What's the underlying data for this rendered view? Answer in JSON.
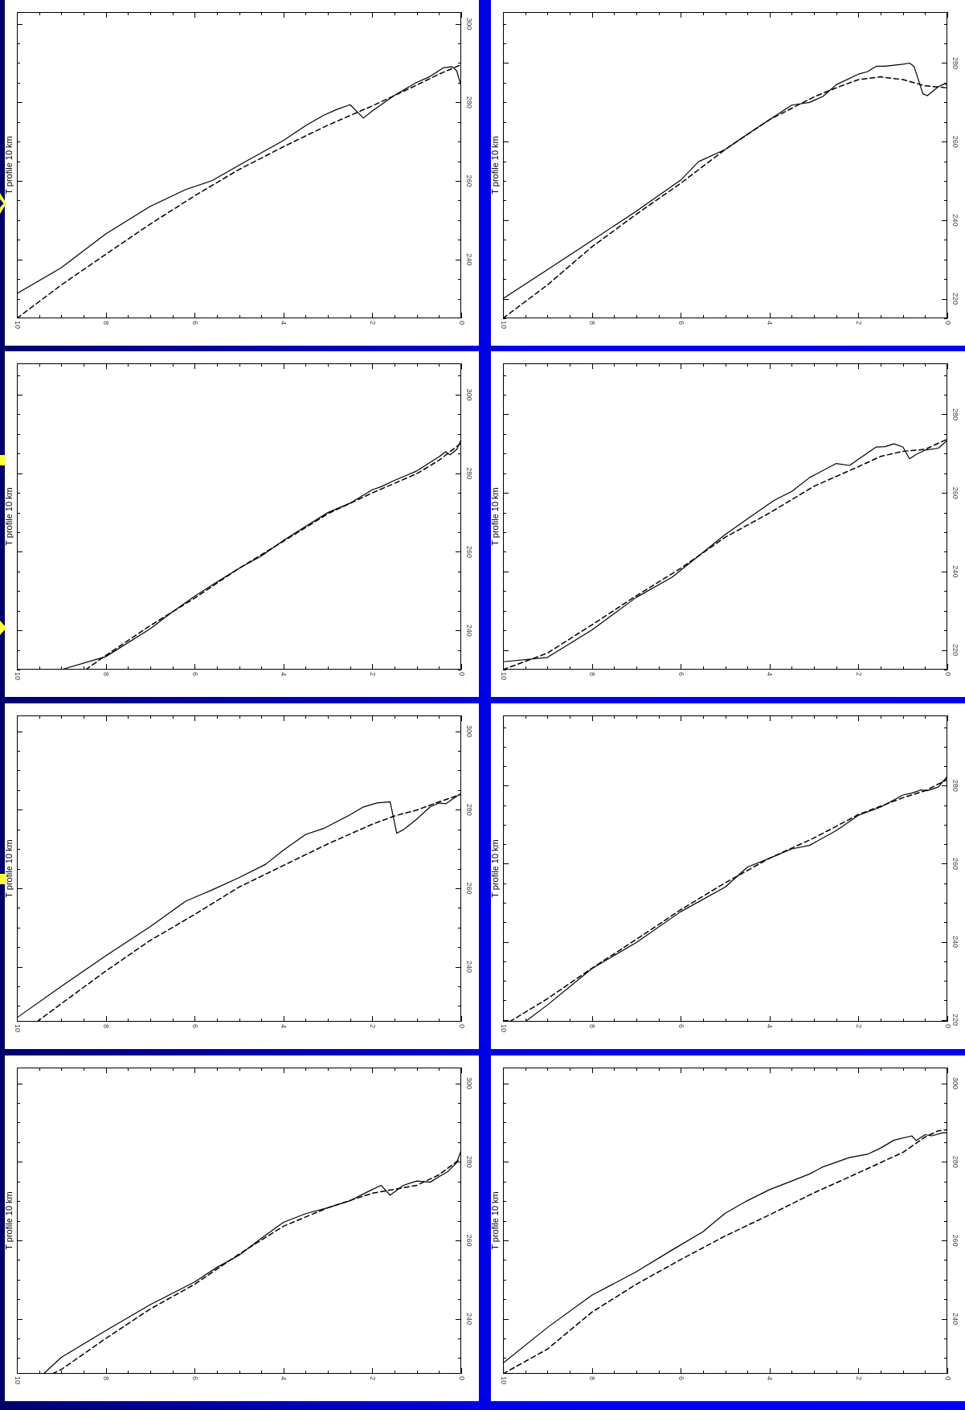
{
  "chart_data": [
    {
      "type": "line",
      "ylabel": "T profile 10 km",
      "marker": "none",
      "xlim": [
        10,
        0
      ],
      "xticks": [
        10,
        {
          "value": 9.5,
          "label": null
        },
        {
          "value": 9,
          "label": null
        },
        {
          "value": 8.5,
          "label": null
        },
        8,
        {
          "value": 7.5,
          "label": null
        },
        {
          "value": 7,
          "label": null
        },
        {
          "value": 6.5,
          "label": null
        },
        6,
        {
          "value": 5.5,
          "label": null
        },
        {
          "value": 5,
          "label": null
        },
        {
          "value": 4.5,
          "label": null
        },
        4,
        {
          "value": 3.5,
          "label": null
        },
        {
          "value": 3,
          "label": null
        },
        {
          "value": 2.5,
          "label": null
        },
        2,
        {
          "value": 1.5,
          "label": null
        },
        {
          "value": 1,
          "label": null
        },
        {
          "value": 0.5,
          "label": null
        },
        0
      ],
      "ylim": [
        225,
        303
      ],
      "yticks": [
        {
          "value": 230,
          "label": null
        },
        {
          "value": 235,
          "label": null
        },
        240,
        {
          "value": 245,
          "label": null
        },
        {
          "value": 250,
          "label": null
        },
        {
          "value": 255,
          "label": null
        },
        260,
        {
          "value": 265,
          "label": null
        },
        {
          "value": 270,
          "label": null
        },
        {
          "value": 275,
          "label": null
        },
        280,
        {
          "value": 285,
          "label": null
        },
        {
          "value": 290,
          "label": null
        },
        {
          "value": 295,
          "label": null
        },
        300
      ],
      "series": [
        {
          "color": "#000000",
          "line_style": "solid",
          "x": [
            10,
            9,
            8,
            7,
            6.2,
            5.6,
            5,
            4,
            3.5,
            3.1,
            2.8,
            2.5,
            2.2,
            2,
            1.5,
            1,
            0.7,
            0.4,
            0.2,
            0.1,
            0
          ],
          "values": [
            231.3,
            237.9,
            246.5,
            253.5,
            257.8,
            260.1,
            264,
            270.3,
            274.1,
            276.7,
            278.2,
            279.4,
            276,
            277.8,
            281.8,
            285.1,
            286.6,
            288.8,
            289.1,
            288,
            284.1
          ]
        },
        {
          "color": "#000000",
          "line_style": "dashed",
          "x": [
            10,
            9,
            8,
            7,
            6,
            5,
            4,
            3,
            2,
            1,
            0.5,
            0
          ],
          "values": [
            225,
            233.5,
            241.3,
            249,
            256.2,
            262.9,
            268.7,
            274.2,
            279.1,
            284.4,
            287.2,
            289.6
          ]
        }
      ]
    },
    {
      "type": "line",
      "ylabel": "T profile 10 km",
      "marker": "none",
      "xlim": [
        10,
        0
      ],
      "xticks": [
        10,
        {
          "value": 9.5,
          "label": null
        },
        {
          "value": 9,
          "label": null
        },
        {
          "value": 8.5,
          "label": null
        },
        8,
        {
          "value": 7.5,
          "label": null
        },
        {
          "value": 7,
          "label": null
        },
        {
          "value": 6.5,
          "label": null
        },
        6,
        {
          "value": 5.5,
          "label": null
        },
        {
          "value": 5,
          "label": null
        },
        {
          "value": 4.5,
          "label": null
        },
        4,
        {
          "value": 3.5,
          "label": null
        },
        {
          "value": 3,
          "label": null
        },
        {
          "value": 2.5,
          "label": null
        },
        2,
        {
          "value": 1.5,
          "label": null
        },
        {
          "value": 1,
          "label": null
        },
        {
          "value": 0.5,
          "label": null
        },
        0
      ],
      "ylim": [
        215,
        293
      ],
      "yticks": [
        {
          "value": 215,
          "label": null
        },
        220,
        {
          "value": 225,
          "label": null
        },
        {
          "value": 230,
          "label": null
        },
        {
          "value": 235,
          "label": null
        },
        240,
        {
          "value": 245,
          "label": null
        },
        {
          "value": 250,
          "label": null
        },
        {
          "value": 255,
          "label": null
        },
        260,
        {
          "value": 265,
          "label": null
        },
        {
          "value": 270,
          "label": null
        },
        {
          "value": 275,
          "label": null
        },
        280,
        {
          "value": 285,
          "label": null
        },
        {
          "value": 290,
          "label": null
        }
      ],
      "series": [
        {
          "color": "#000000",
          "line_style": "solid",
          "x": [
            10,
            9,
            8,
            7,
            6,
            5.6,
            5,
            4.5,
            4,
            3.5,
            3.1,
            2.8,
            2.5,
            2,
            1.8,
            1.6,
            1.4,
            1,
            0.85,
            0.75,
            0.55,
            0.45,
            0.2,
            0.05,
            0
          ],
          "values": [
            220,
            227.4,
            234.8,
            242.3,
            250.2,
            254.9,
            258,
            261.9,
            265.6,
            269.3,
            270,
            271.5,
            274.5,
            277.2,
            277.8,
            279.2,
            279.2,
            279.7,
            280,
            279.2,
            272.2,
            271.7,
            274,
            274.8,
            274.2
          ]
        },
        {
          "color": "#000000",
          "line_style": "dashed",
          "x": [
            10,
            9,
            8,
            7,
            6,
            5,
            4,
            3,
            2.5,
            2,
            1.5,
            1,
            0.5,
            0
          ],
          "values": [
            215,
            223.5,
            233.2,
            241.5,
            249.4,
            258,
            265.6,
            271.4,
            273.7,
            275.8,
            276.5,
            275.8,
            274.2,
            273.7
          ]
        }
      ]
    },
    {
      "type": "line",
      "ylabel": "T profile 10 km",
      "marker": "none",
      "xlim": [
        10,
        0
      ],
      "xticks": [
        10,
        {
          "value": 9.5,
          "label": null
        },
        {
          "value": 9,
          "label": null
        },
        {
          "value": 8.5,
          "label": null
        },
        8,
        {
          "value": 7.5,
          "label": null
        },
        {
          "value": 7,
          "label": null
        },
        {
          "value": 6.5,
          "label": null
        },
        6,
        {
          "value": 5.5,
          "label": null
        },
        {
          "value": 5,
          "label": null
        },
        {
          "value": 4.5,
          "label": null
        },
        4,
        {
          "value": 3.5,
          "label": null
        },
        {
          "value": 3,
          "label": null
        },
        {
          "value": 2.5,
          "label": null
        },
        2,
        {
          "value": 1.5,
          "label": null
        },
        {
          "value": 1,
          "label": null
        },
        {
          "value": 0.5,
          "label": null
        },
        0
      ],
      "ylim": [
        230,
        308
      ],
      "yticks": [
        {
          "value": 230,
          "label": null
        },
        {
          "value": 235,
          "label": null
        },
        240,
        {
          "value": 245,
          "label": null
        },
        {
          "value": 250,
          "label": null
        },
        {
          "value": 255,
          "label": null
        },
        260,
        {
          "value": 265,
          "label": null
        },
        {
          "value": 270,
          "label": null
        },
        {
          "value": 275,
          "label": null
        },
        280,
        {
          "value": 285,
          "label": null
        },
        {
          "value": 290,
          "label": null
        },
        {
          "value": 295,
          "label": null
        },
        300,
        {
          "value": 305,
          "label": null
        }
      ],
      "series": [
        {
          "color": "#000000",
          "line_style": "solid",
          "x": [
            9,
            8,
            7,
            6.5,
            6,
            5.5,
            5,
            4.5,
            4,
            3.5,
            3,
            2.5,
            2,
            1.8,
            1.5,
            1,
            0.5,
            0.35,
            0.25,
            0.1,
            0
          ],
          "values": [
            230,
            233.3,
            240.4,
            244.7,
            248.7,
            252.3,
            255.8,
            258.9,
            262.9,
            266.5,
            270,
            272.4,
            275.8,
            276.6,
            278.2,
            280.6,
            284.2,
            285.5,
            284.7,
            286.1,
            288.6
          ]
        },
        {
          "color": "#000000",
          "line_style": "dashed",
          "x": [
            8.45,
            8,
            7,
            6,
            5,
            4,
            3,
            2,
            1,
            0.5,
            0
          ],
          "values": [
            230,
            233.6,
            241.2,
            248.2,
            255.8,
            262.7,
            269.7,
            275,
            279.9,
            283.3,
            287.7
          ]
        }
      ]
    },
    {
      "type": "line",
      "ylabel": "T profile 10 km",
      "marker": "none",
      "xlim": [
        10,
        0
      ],
      "xticks": [
        10,
        {
          "value": 9.5,
          "label": null
        },
        {
          "value": 9,
          "label": null
        },
        {
          "value": 8.5,
          "label": null
        },
        8,
        {
          "value": 7.5,
          "label": null
        },
        {
          "value": 7,
          "label": null
        },
        {
          "value": 6.5,
          "label": null
        },
        6,
        {
          "value": 5.5,
          "label": null
        },
        {
          "value": 5,
          "label": null
        },
        {
          "value": 4.5,
          "label": null
        },
        4,
        {
          "value": 3.5,
          "label": null
        },
        {
          "value": 3,
          "label": null
        },
        {
          "value": 2.5,
          "label": null
        },
        2,
        {
          "value": 1.5,
          "label": null
        },
        {
          "value": 1,
          "label": null
        },
        {
          "value": 0.5,
          "label": null
        },
        0
      ],
      "ylim": [
        215,
        293
      ],
      "yticks": [
        {
          "value": 215,
          "label": null
        },
        220,
        {
          "value": 225,
          "label": null
        },
        {
          "value": 230,
          "label": null
        },
        {
          "value": 235,
          "label": null
        },
        240,
        {
          "value": 245,
          "label": null
        },
        {
          "value": 250,
          "label": null
        },
        {
          "value": 255,
          "label": null
        },
        260,
        {
          "value": 265,
          "label": null
        },
        {
          "value": 270,
          "label": null
        },
        {
          "value": 275,
          "label": null
        },
        280,
        {
          "value": 285,
          "label": null
        },
        {
          "value": 290,
          "label": null
        }
      ],
      "series": [
        {
          "color": "#000000",
          "line_style": "solid",
          "x": [
            10,
            9,
            8,
            7,
            6.2,
            5,
            4.5,
            3.9,
            3.5,
            3.1,
            2.5,
            2.2,
            2,
            1.6,
            1.4,
            1.2,
            1,
            0.85,
            0.7,
            0.5,
            0.2,
            0
          ],
          "values": [
            217,
            218.1,
            225.1,
            233.4,
            238.5,
            249.4,
            253.4,
            258.1,
            260.4,
            263.9,
            267.5,
            267,
            268.6,
            271.7,
            271.8,
            272.5,
            271.7,
            268.7,
            269.8,
            270.9,
            271.4,
            273.4
          ]
        },
        {
          "color": "#000000",
          "line_style": "dashed",
          "x": [
            10,
            9,
            8,
            7,
            6,
            5,
            4,
            3,
            2,
            1.5,
            1,
            0.5,
            0
          ],
          "values": [
            215,
            219.2,
            226.4,
            233.8,
            240.8,
            248.7,
            254.9,
            261.7,
            266.7,
            269.3,
            270.6,
            271.1,
            273.7
          ]
        }
      ]
    },
    {
      "type": "line",
      "ylabel": "T profile 10 km",
      "marker": "none",
      "xlim": [
        10,
        0
      ],
      "xticks": [
        10,
        {
          "value": 9.5,
          "label": null
        },
        {
          "value": 9,
          "label": null
        },
        {
          "value": 8.5,
          "label": null
        },
        8,
        {
          "value": 7.5,
          "label": null
        },
        {
          "value": 7,
          "label": null
        },
        {
          "value": 6.5,
          "label": null
        },
        6,
        {
          "value": 5.5,
          "label": null
        },
        {
          "value": 5,
          "label": null
        },
        {
          "value": 4.5,
          "label": null
        },
        4,
        {
          "value": 3.5,
          "label": null
        },
        {
          "value": 3,
          "label": null
        },
        {
          "value": 2.5,
          "label": null
        },
        2,
        {
          "value": 1.5,
          "label": null
        },
        {
          "value": 1,
          "label": null
        },
        {
          "value": 0.5,
          "label": null
        },
        0
      ],
      "ylim": [
        226,
        304
      ],
      "yticks": [
        {
          "value": 230,
          "label": null
        },
        {
          "value": 235,
          "label": null
        },
        240,
        {
          "value": 245,
          "label": null
        },
        {
          "value": 250,
          "label": null
        },
        {
          "value": 255,
          "label": null
        },
        260,
        {
          "value": 265,
          "label": null
        },
        {
          "value": 270,
          "label": null
        },
        {
          "value": 275,
          "label": null
        },
        280,
        {
          "value": 285,
          "label": null
        },
        {
          "value": 290,
          "label": null
        },
        {
          "value": 295,
          "label": null
        },
        300
      ],
      "series": [
        {
          "color": "#000000",
          "line_style": "solid",
          "x": [
            10,
            9,
            8,
            7,
            6.2,
            5.6,
            5,
            4.4,
            4,
            3.5,
            3.1,
            2.5,
            2.2,
            1.9,
            1.6,
            1.45,
            1.3,
            1,
            0.7,
            0.5,
            0.35,
            0.1,
            0
          ],
          "values": [
            227,
            235,
            242.8,
            250.2,
            256.7,
            259.6,
            262.7,
            266.1,
            269.7,
            273.7,
            275.2,
            278.7,
            280.7,
            281.7,
            282,
            274,
            274.9,
            277.6,
            280.7,
            281.7,
            281.5,
            283.4,
            284.2
          ]
        },
        {
          "color": "#000000",
          "line_style": "dashed",
          "x": [
            9.55,
            9,
            8,
            7,
            6,
            5,
            4,
            3,
            2,
            1.5,
            1,
            0.5,
            0
          ],
          "values": [
            226,
            230.6,
            238.9,
            246.7,
            253.3,
            260.3,
            265.8,
            271.3,
            276.3,
            278.4,
            279.9,
            282,
            283.9
          ]
        }
      ]
    },
    {
      "type": "line",
      "ylabel": "T profile 10 km",
      "marker": "none",
      "xlim": [
        10,
        0
      ],
      "xticks": [
        10,
        {
          "value": 9.5,
          "label": null
        },
        {
          "value": 9,
          "label": null
        },
        {
          "value": 8.5,
          "label": null
        },
        8,
        {
          "value": 7.5,
          "label": null
        },
        {
          "value": 7,
          "label": null
        },
        {
          "value": 6.5,
          "label": null
        },
        6,
        {
          "value": 5.5,
          "label": null
        },
        {
          "value": 5,
          "label": null
        },
        {
          "value": 4.5,
          "label": null
        },
        4,
        {
          "value": 3.5,
          "label": null
        },
        {
          "value": 3,
          "label": null
        },
        {
          "value": 2.5,
          "label": null
        },
        2,
        {
          "value": 1.5,
          "label": null
        },
        {
          "value": 1,
          "label": null
        },
        {
          "value": 0.5,
          "label": null
        },
        0
      ],
      "ylim": [
        219.5,
        298
      ],
      "yticks": [
        220,
        {
          "value": 225,
          "label": null
        },
        {
          "value": 230,
          "label": null
        },
        {
          "value": 235,
          "label": null
        },
        240,
        {
          "value": 245,
          "label": null
        },
        {
          "value": 250,
          "label": null
        },
        {
          "value": 255,
          "label": null
        },
        260,
        {
          "value": 265,
          "label": null
        },
        {
          "value": 270,
          "label": null
        },
        {
          "value": 275,
          "label": null
        },
        280,
        {
          "value": 285,
          "label": null
        },
        {
          "value": 290,
          "label": null
        },
        {
          "value": 295,
          "label": null
        }
      ],
      "series": [
        {
          "color": "#000000",
          "line_style": "solid",
          "x": [
            9.5,
            9,
            8,
            7,
            6,
            5,
            4.5,
            4,
            3.5,
            3.1,
            2.5,
            2,
            1.5,
            1,
            0.8,
            0.6,
            0.45,
            0.2,
            0
          ],
          "values": [
            219.5,
            223.8,
            233.1,
            239.8,
            247.7,
            254,
            259.1,
            261.4,
            263.8,
            264.7,
            268.5,
            272.4,
            274.5,
            277.6,
            278.1,
            278.9,
            278.7,
            279.7,
            282.4
          ]
        },
        {
          "color": "#000000",
          "line_style": "dashed",
          "x": [
            9.85,
            9,
            8,
            7,
            6,
            5,
            4,
            3,
            2,
            1,
            0.5,
            0
          ],
          "values": [
            219.5,
            225.4,
            233.2,
            240.6,
            248.2,
            255.1,
            261.4,
            266.6,
            272.6,
            276.9,
            278.7,
            281.6
          ]
        }
      ]
    },
    {
      "type": "line",
      "ylabel": "T profile 10 km",
      "marker": "none",
      "xlim": [
        10,
        0
      ],
      "xticks": [
        10,
        {
          "value": 9.5,
          "label": null
        },
        {
          "value": 9,
          "label": null
        },
        {
          "value": 8.5,
          "label": null
        },
        8,
        {
          "value": 7.5,
          "label": null
        },
        {
          "value": 7,
          "label": null
        },
        {
          "value": 6.5,
          "label": null
        },
        6,
        {
          "value": 5.5,
          "label": null
        },
        {
          "value": 5,
          "label": null
        },
        {
          "value": 4.5,
          "label": null
        },
        4,
        {
          "value": 3.5,
          "label": null
        },
        {
          "value": 3,
          "label": null
        },
        {
          "value": 2.5,
          "label": null
        },
        2,
        {
          "value": 1.5,
          "label": null
        },
        {
          "value": 1,
          "label": null
        },
        {
          "value": 0.5,
          "label": null
        },
        0
      ],
      "ylim": [
        226,
        304
      ],
      "yticks": [
        {
          "value": 230,
          "label": null
        },
        {
          "value": 235,
          "label": null
        },
        240,
        {
          "value": 245,
          "label": null
        },
        {
          "value": 250,
          "label": null
        },
        {
          "value": 255,
          "label": null
        },
        260,
        {
          "value": 265,
          "label": null
        },
        {
          "value": 270,
          "label": null
        },
        {
          "value": 275,
          "label": null
        },
        280,
        {
          "value": 285,
          "label": null
        },
        {
          "value": 290,
          "label": null
        },
        {
          "value": 295,
          "label": null
        },
        300
      ],
      "series": [
        {
          "color": "#000000",
          "line_style": "solid",
          "x": [
            9.4,
            9,
            8,
            7,
            6,
            5.5,
            5,
            4.5,
            4,
            3.5,
            3,
            2.5,
            2.1,
            1.8,
            1.6,
            1.3,
            1,
            0.7,
            0.5,
            0.3,
            0.1,
            0
          ],
          "values": [
            226,
            230.2,
            237,
            243.6,
            249.4,
            253.1,
            256.2,
            260.5,
            264.6,
            266.8,
            268.3,
            270.1,
            272.4,
            274,
            271.5,
            274,
            275.1,
            274.8,
            276.2,
            277.5,
            279.8,
            283
          ]
        },
        {
          "color": "#000000",
          "line_style": "dashed",
          "x": [
            9.2,
            9,
            8,
            7,
            6,
            5,
            4,
            3,
            2,
            1,
            0.5,
            0
          ],
          "values": [
            226,
            227.1,
            235,
            242.5,
            248.8,
            256.5,
            263.6,
            268.3,
            272,
            274,
            276.7,
            280.9
          ]
        }
      ]
    },
    {
      "type": "line",
      "ylabel": "T profile 10 km",
      "marker": "none",
      "xlim": [
        10,
        0
      ],
      "xticks": [
        10,
        {
          "value": 9.5,
          "label": null
        },
        {
          "value": 9,
          "label": null
        },
        {
          "value": 8.5,
          "label": null
        },
        8,
        {
          "value": 7.5,
          "label": null
        },
        {
          "value": 7,
          "label": null
        },
        {
          "value": 6.5,
          "label": null
        },
        6,
        {
          "value": 5.5,
          "label": null
        },
        {
          "value": 5,
          "label": null
        },
        {
          "value": 4.5,
          "label": null
        },
        4,
        {
          "value": 3.5,
          "label": null
        },
        {
          "value": 3,
          "label": null
        },
        {
          "value": 2.5,
          "label": null
        },
        2,
        {
          "value": 1.5,
          "label": null
        },
        {
          "value": 1,
          "label": null
        },
        {
          "value": 0.5,
          "label": null
        },
        0
      ],
      "ylim": [
        226,
        304
      ],
      "yticks": [
        {
          "value": 230,
          "label": null
        },
        {
          "value": 235,
          "label": null
        },
        240,
        {
          "value": 245,
          "label": null
        },
        {
          "value": 250,
          "label": null
        },
        {
          "value": 255,
          "label": null
        },
        260,
        {
          "value": 265,
          "label": null
        },
        {
          "value": 270,
          "label": null
        },
        {
          "value": 275,
          "label": null
        },
        280,
        {
          "value": 285,
          "label": null
        },
        {
          "value": 290,
          "label": null
        },
        {
          "value": 295,
          "label": null
        },
        300
      ],
      "series": [
        {
          "color": "#000000",
          "line_style": "solid",
          "x": [
            10,
            9,
            8,
            7,
            6.2,
            5.5,
            5,
            4.5,
            4,
            3.5,
            3.1,
            2.8,
            2.2,
            1.8,
            1.5,
            1.2,
            0.8,
            0.7,
            0.5,
            0.35,
            0.1,
            0
          ],
          "values": [
            228.7,
            237.8,
            246,
            252,
            257.5,
            262.2,
            266.9,
            270.1,
            272.9,
            275.1,
            276.9,
            278.7,
            281.1,
            281.9,
            283.5,
            285.5,
            286.6,
            285.4,
            286.9,
            286.6,
            287.4,
            287.4
          ]
        },
        {
          "color": "#000000",
          "line_style": "dashed",
          "x": [
            10,
            9,
            8,
            7,
            6,
            5,
            4,
            3,
            2,
            1.5,
            1,
            0.5,
            0.2,
            0
          ],
          "values": [
            226,
            232.3,
            241.7,
            248.8,
            255.1,
            261.1,
            266.5,
            272.1,
            277.2,
            279.8,
            282.4,
            286.3,
            287.9,
            288.2
          ]
        }
      ]
    }
  ]
}
